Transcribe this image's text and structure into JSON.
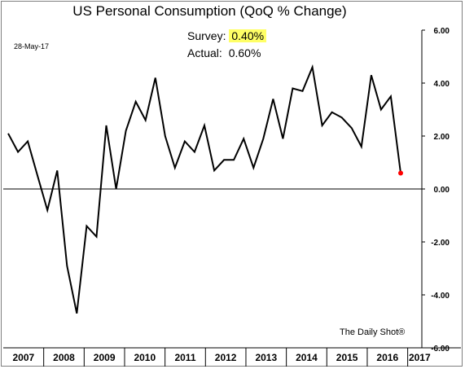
{
  "header": {
    "date": "28-May-17"
  },
  "annotation": {
    "survey_label": "Survey:",
    "survey_value": "0.40%",
    "actual_label": "Actual:",
    "actual_value": "0.60%"
  },
  "source": "The Daily Shot®",
  "colors": {
    "line": "#000000",
    "last_point": "#ff0000",
    "highlight": "#ffff66"
  },
  "chart_data": {
    "type": "line",
    "title": "US Personal Consumption (QoQ % Change)",
    "xlabel": "",
    "ylabel": "",
    "ylim": [
      -6,
      6
    ],
    "yticks": [
      "6.00",
      "4.00",
      "2.00",
      "0.00",
      "-2.00",
      "-4.00",
      "-6.00"
    ],
    "x_categories": [
      "2007",
      "2008",
      "2009",
      "2010",
      "2011",
      "2012",
      "2013",
      "2014",
      "2015",
      "2016",
      "2017"
    ],
    "x": [
      "2007 Q1",
      "2007 Q2",
      "2007 Q3",
      "2007 Q4",
      "2008 Q1",
      "2008 Q2",
      "2008 Q3",
      "2008 Q4",
      "2009 Q1",
      "2009 Q2",
      "2009 Q3",
      "2009 Q4",
      "2010 Q1",
      "2010 Q2",
      "2010 Q3",
      "2010 Q4",
      "2011 Q1",
      "2011 Q2",
      "2011 Q3",
      "2011 Q4",
      "2012 Q1",
      "2012 Q2",
      "2012 Q3",
      "2012 Q4",
      "2013 Q1",
      "2013 Q2",
      "2013 Q3",
      "2013 Q4",
      "2014 Q1",
      "2014 Q2",
      "2014 Q3",
      "2014 Q4",
      "2015 Q1",
      "2015 Q2",
      "2015 Q3",
      "2015 Q4",
      "2016 Q1",
      "2016 Q2",
      "2016 Q3",
      "2016 Q4",
      "2017 Q1"
    ],
    "series": [
      {
        "values": [
          2.1,
          1.4,
          1.8,
          0.5,
          -0.8,
          0.7,
          -2.9,
          -4.7,
          -1.4,
          -1.8,
          2.4,
          0.0,
          2.2,
          3.3,
          2.6,
          4.2,
          2.0,
          0.8,
          1.8,
          1.4,
          2.4,
          0.7,
          1.1,
          1.1,
          1.9,
          0.8,
          1.9,
          3.4,
          1.9,
          3.8,
          3.7,
          4.6,
          2.4,
          2.9,
          2.7,
          2.3,
          1.6,
          4.3,
          3.0,
          3.5,
          0.6
        ]
      }
    ],
    "grid": false,
    "zero_line": true
  }
}
